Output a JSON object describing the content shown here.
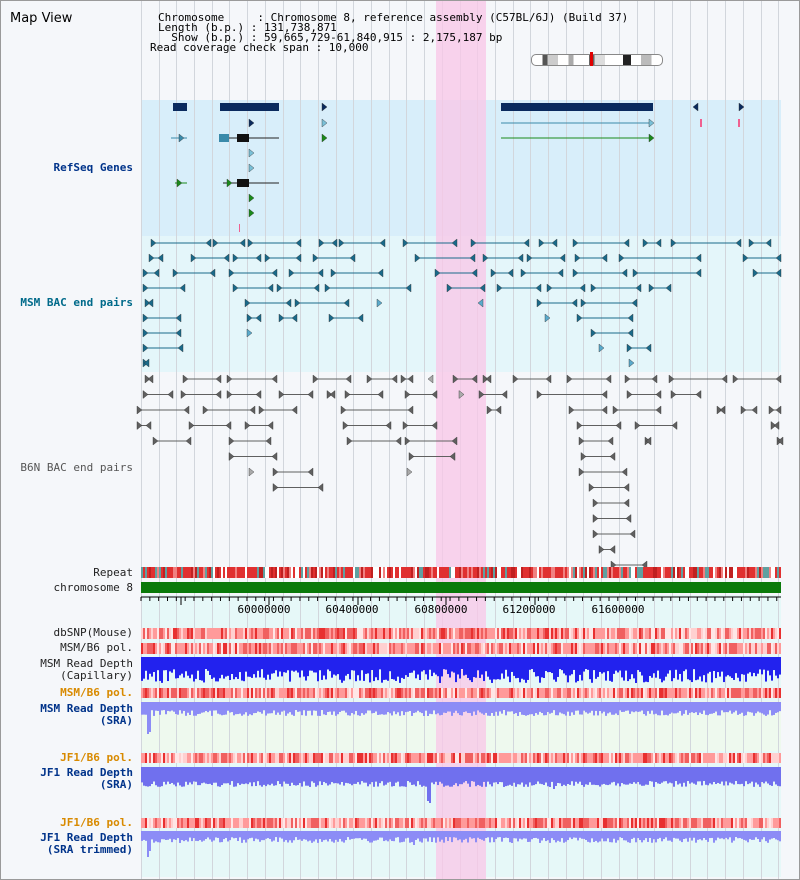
{
  "header": {
    "title": "Map View",
    "info_lines": [
      "Chromosome     : Chromosome 8, reference assembly (C57BL/6J) (Build 37)",
      "Length (b.p.) : 131,738,871",
      "  Show (b.p.) : 59,665,729-61,840,915 : 2,175,187 bp",
      "Read coverage check span : 10,000"
    ]
  },
  "tracks": {
    "refseq": "RefSeq Genes",
    "msm_bac": "MSM BAC end pairs",
    "b6n_bac": "B6N BAC end pairs",
    "repeat": "Repeat",
    "chromosome": "chromosome 8",
    "dbsnp": "dbSNP(Mouse)",
    "msm_b6_pol_1": "MSM/B6 pol.",
    "msm_read_depth_cap": "MSM Read Depth\n(Capillary)",
    "msm_b6_pol_2": "MSM/B6 pol.",
    "msm_read_depth_sra": "MSM Read Depth\n(SRA)",
    "jf1_b6_pol_1": "JF1/B6 pol.",
    "jf1_read_depth_sra": "JF1 Read Depth\n(SRA)",
    "jf1_b6_pol_2": "JF1/B6 pol.",
    "jf1_read_depth_trim": "JF1 Read Depth\n(SRA trimmed)"
  },
  "axis": {
    "ticks": [
      "60000000",
      "60400000",
      "60800000",
      "61200000",
      "61600000"
    ]
  },
  "colors": {
    "refseq_bg": "#d8eefa",
    "msm_bg": "#e4f6fa",
    "highlight": "#f8d4ec",
    "chromosome": "#0a7a0a",
    "gene_dark": "#0a2a5e",
    "gene_mid": "#3a8aaa",
    "gene_green": "#1a8a1a",
    "msm_line": "#1a6a8a",
    "b6n_line": "#606060",
    "depth_blue": "#2222ee",
    "depth_light": "#8888ff",
    "pol_red": "#e83030",
    "label_navy": "#00338a",
    "label_teal": "#006a8a",
    "label_orange": "#d88a00"
  }
}
